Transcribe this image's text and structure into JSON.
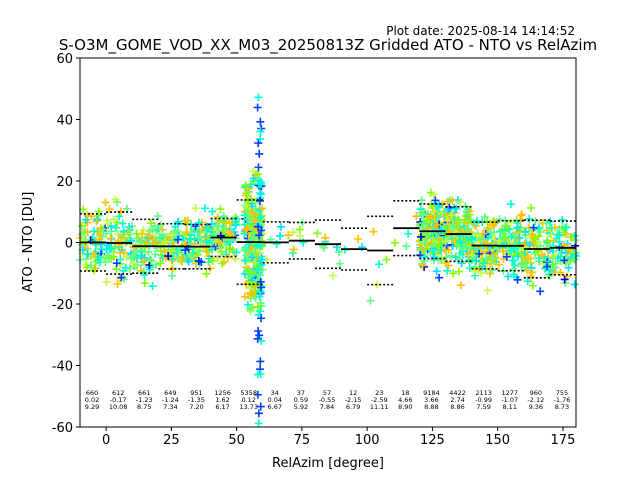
{
  "chart_data": {
    "type": "scatter",
    "title": "S-O3M_GOME_VOD_XX_M03_20250813Z Gridded ATO - NTO vs RelAzim",
    "plot_date": "Plot date: 2025-08-14 14:14:52",
    "xlabel": "RelAzim [degree]",
    "ylabel": "ATO - NTO [DU]",
    "xlim": [
      -10,
      180
    ],
    "ylim": [
      -60,
      60
    ],
    "xticks": [
      0,
      25,
      50,
      75,
      100,
      125,
      150,
      175
    ],
    "yticks": [
      -60,
      -40,
      -20,
      0,
      20,
      40,
      60
    ],
    "grid": false,
    "bin_centers": [
      -5,
      5,
      15,
      25,
      35,
      45,
      55,
      65,
      75,
      85,
      95,
      105,
      115,
      125,
      135,
      145,
      155,
      165,
      175
    ],
    "bin_counts": [
      "660",
      "612",
      "661",
      "649",
      "951",
      "1256",
      "5358",
      "34",
      "37",
      "57",
      "12",
      "23",
      "18",
      "9184",
      "4422",
      "2113",
      "1277",
      "960",
      "755"
    ],
    "bin_means": [
      "0.02",
      "-0.17",
      "-1.23",
      "-1.24",
      "-1.35",
      "1.62",
      "0.12",
      "0.04",
      "0.59",
      "-0.55",
      "-2.15",
      "-2.59",
      "4.66",
      "3.66",
      "2.74",
      "-0.99",
      "-1.07",
      "-2.12",
      "-1.76"
    ],
    "bin_stds": [
      "9.29",
      "10.08",
      "8.75",
      "7.34",
      "7.20",
      "6.17",
      "13.73",
      "6.67",
      "5.92",
      "7.84",
      "6.79",
      "11.11",
      "8.90",
      "8.88",
      "8.86",
      "7.59",
      "8.11",
      "9.36",
      "8.73"
    ],
    "point_colors": [
      "#ffc000",
      "#80ff00",
      "#c0ff40",
      "#00ffd0",
      "#00e0ff",
      "#60ff80",
      "#0040ff",
      "#0000c0"
    ]
  }
}
